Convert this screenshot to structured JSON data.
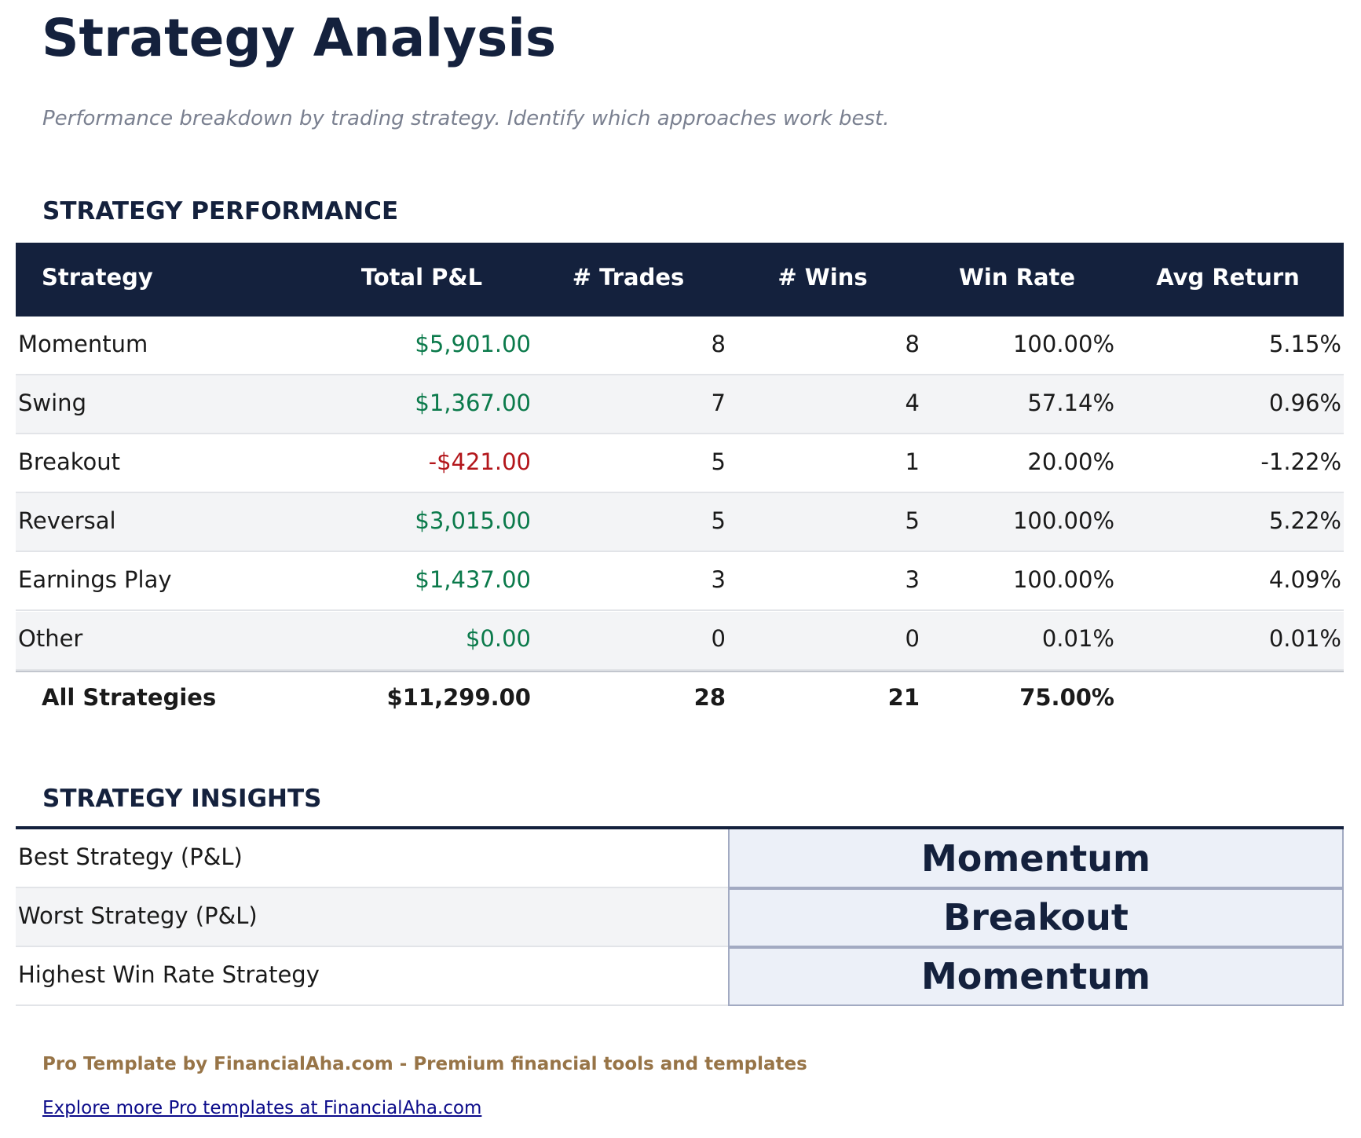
{
  "header": {
    "title": "Strategy Analysis",
    "subtitle": "Performance breakdown by trading strategy. Identify which approaches work best."
  },
  "performance": {
    "heading": "STRATEGY PERFORMANCE",
    "columns": [
      "Strategy",
      "Total P&L",
      "# Trades",
      "# Wins",
      "Win Rate",
      "Avg Return"
    ],
    "rows": [
      [
        "Momentum",
        "$5,901.00",
        "8",
        "8",
        "100.00%",
        "5.15%"
      ],
      [
        "Swing",
        "$1,367.00",
        "7",
        "4",
        "57.14%",
        "0.96%"
      ],
      [
        "Breakout",
        "-$421.00",
        "5",
        "1",
        "20.00%",
        "-1.22%"
      ],
      [
        "Reversal",
        "$3,015.00",
        "5",
        "5",
        "100.00%",
        "5.22%"
      ],
      [
        "Earnings Play",
        "$1,437.00",
        "3",
        "3",
        "100.00%",
        "4.09%"
      ],
      [
        "Other",
        "$0.00",
        "0",
        "0",
        "0.01%",
        "0.01%"
      ]
    ],
    "total": [
      "All Strategies",
      "$11,299.00",
      "28",
      "21",
      "75.00%"
    ]
  },
  "insights": {
    "heading": "STRATEGY INSIGHTS",
    "rows": [
      [
        "Best Strategy (P&L)",
        "Momentum"
      ],
      [
        "Worst Strategy (P&L)",
        "Breakout"
      ],
      [
        "Highest Win Rate Strategy",
        "Momentum"
      ]
    ]
  },
  "footer": {
    "credit": "Pro Template by FinancialAha.com - Premium financial tools and templates",
    "link": "Explore more Pro templates at FinancialAha.com"
  }
}
